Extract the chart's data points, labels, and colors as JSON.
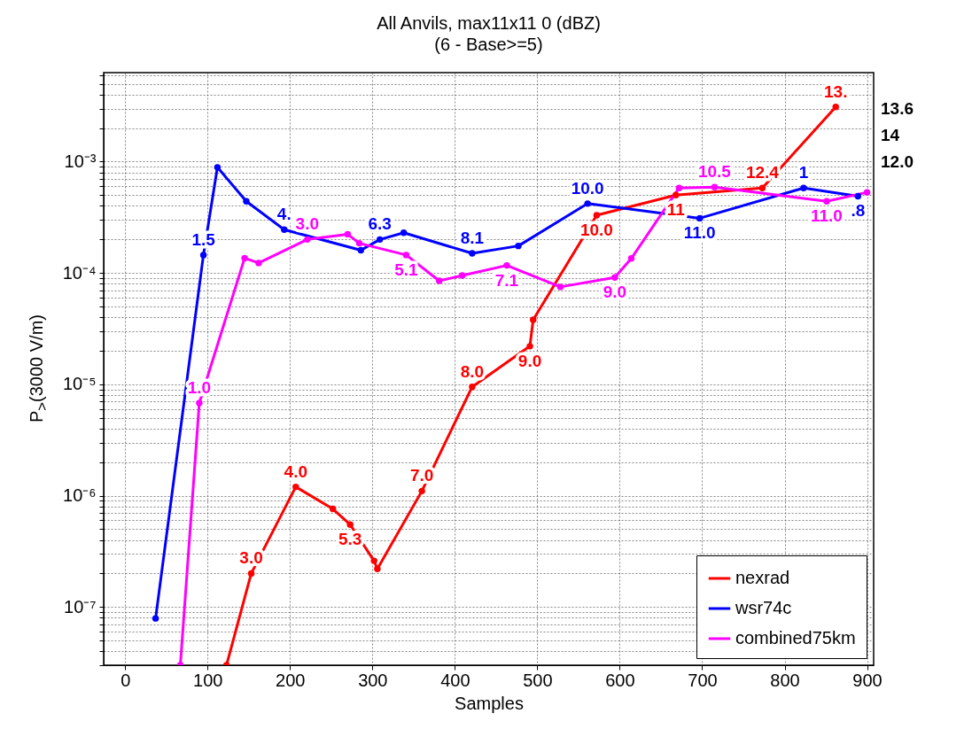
{
  "chart_data": {
    "type": "line",
    "title": "All Anvils, max11x11 0 (dBZ)",
    "subtitle": "(6 - Base>=5)",
    "xlabel": "Samples",
    "ylabel": "P$_{>}$(3000 V/m)",
    "log": true,
    "grid": true,
    "legend": "bottom right",
    "marker": "circle",
    "line_style": "solid",
    "xlim": [
      -26,
      908
    ],
    "xticks": [
      0,
      100,
      200,
      300,
      400,
      500,
      600,
      700,
      800,
      900
    ],
    "ylim": [
      3e-08,
      0.0063
    ],
    "yticks": [
      {
        "value": 3e-08,
        "label": null
      },
      {
        "value": 4e-08,
        "label": null
      },
      {
        "value": 5e-08,
        "label": null
      },
      {
        "value": 6e-08,
        "label": null
      },
      {
        "value": 7e-08,
        "label": null
      },
      {
        "value": 8e-08,
        "label": null
      },
      {
        "value": 9e-08,
        "label": null
      },
      {
        "value": 1e-07,
        "label": "10⁻⁷"
      },
      {
        "value": 2e-07,
        "label": null
      },
      {
        "value": 3e-07,
        "label": null
      },
      {
        "value": 4e-07,
        "label": null
      },
      {
        "value": 5e-07,
        "label": null
      },
      {
        "value": 6e-07,
        "label": null
      },
      {
        "value": 7e-07,
        "label": null
      },
      {
        "value": 8e-07,
        "label": null
      },
      {
        "value": 9e-07,
        "label": null
      },
      {
        "value": 1e-06,
        "label": "10⁻⁶"
      },
      {
        "value": 2e-06,
        "label": null
      },
      {
        "value": 3e-06,
        "label": null
      },
      {
        "value": 4e-06,
        "label": null
      },
      {
        "value": 5e-06,
        "label": null
      },
      {
        "value": 6e-06,
        "label": null
      },
      {
        "value": 7e-06,
        "label": null
      },
      {
        "value": 8e-06,
        "label": null
      },
      {
        "value": 9e-06,
        "label": null
      },
      {
        "value": 1e-05,
        "label": "10⁻⁵"
      },
      {
        "value": 2e-05,
        "label": null
      },
      {
        "value": 3e-05,
        "label": null
      },
      {
        "value": 4e-05,
        "label": null
      },
      {
        "value": 5e-05,
        "label": null
      },
      {
        "value": 6e-05,
        "label": null
      },
      {
        "value": 7e-05,
        "label": null
      },
      {
        "value": 8e-05,
        "label": null
      },
      {
        "value": 9e-05,
        "label": null
      },
      {
        "value": 0.0001,
        "label": "10⁻⁴"
      },
      {
        "value": 0.0002,
        "label": null
      },
      {
        "value": 0.0003,
        "label": null
      },
      {
        "value": 0.0004,
        "label": null
      },
      {
        "value": 0.0005,
        "label": null
      },
      {
        "value": 0.0006,
        "label": null
      },
      {
        "value": 0.0007,
        "label": null
      },
      {
        "value": 0.0008,
        "label": null
      },
      {
        "value": 0.0009,
        "label": null
      },
      {
        "value": 0.001,
        "label": "10⁻³"
      },
      {
        "value": 0.002,
        "label": null
      },
      {
        "value": 0.003,
        "label": null
      },
      {
        "value": 0.004,
        "label": null
      },
      {
        "value": 0.005,
        "label": null
      },
      {
        "value": 0.006,
        "label": null
      }
    ],
    "series": [
      {
        "name": "nexrad",
        "color": "#ff0000",
        "x": [
          123,
          153,
          207,
          252,
          273,
          302,
          306,
          360,
          421,
          491,
          495,
          572,
          668,
          773,
          862
        ],
        "values": [
          3e-08,
          2e-07,
          1.2e-06,
          7.6e-07,
          5.5e-07,
          2.6e-07,
          2.2e-07,
          1.1e-06,
          9.5e-06,
          2.2e-05,
          3.8e-05,
          0.00033,
          0.0005,
          0.00058,
          0.0031
        ]
      },
      {
        "name": "wsr74c",
        "color": "#0000ff",
        "x": [
          37,
          95,
          112,
          147,
          193,
          286,
          309,
          338,
          421,
          477,
          561,
          697,
          823,
          889
        ],
        "values": [
          7.9e-08,
          0.000145,
          0.00089,
          0.00044,
          0.000245,
          0.00016,
          0.0002,
          0.00023,
          0.00015,
          0.000175,
          0.00042,
          0.00031,
          0.00058,
          0.00049
        ]
      },
      {
        "name": "combined75km",
        "color": "#ff00ff",
        "x": [
          67,
          90,
          145,
          162,
          221,
          270,
          284,
          341,
          381,
          409,
          463,
          528,
          594,
          614,
          672,
          715,
          851,
          900
        ],
        "values": [
          3e-08,
          6.8e-06,
          0.000136,
          0.000123,
          0.0002,
          0.000223,
          0.000185,
          0.000145,
          8.5e-05,
          9.5e-05,
          0.000117,
          7.5e-05,
          9.1e-05,
          0.000135,
          0.00058,
          0.00059,
          0.00044,
          0.00053
        ]
      }
    ],
    "annotations": [
      {
        "text": "3.0",
        "x": 153,
        "y": 2e-07
      },
      {
        "text": "4.0",
        "x": 207,
        "y": 1.2e-06
      },
      {
        "text": "5.3",
        "x": 273,
        "y": 5.5e-07
      },
      {
        "text": "7.0",
        "x": 360,
        "y": 1.1e-06
      },
      {
        "text": "8.0",
        "x": 421,
        "y": 9.5e-06
      },
      {
        "text": "9.0",
        "x": 491,
        "y": 2.2e-05
      },
      {
        "text": "10.0",
        "x": 572,
        "y": 0.00033
      },
      {
        "text": "11",
        "x": 668,
        "y": 0.0005
      },
      {
        "text": "12.4",
        "x": 773,
        "y": 0.00058
      },
      {
        "text": "13.",
        "x": 862,
        "y": 0.0031
      },
      {
        "text": "1.5",
        "x": 95,
        "y": 0.000145
      },
      {
        "text": "4.",
        "x": 193,
        "y": 0.000245
      },
      {
        "text": "6.3",
        "x": 309,
        "y": 0.0002
      },
      {
        "text": "8.1",
        "x": 421,
        "y": 0.00015
      },
      {
        "text": "10.0",
        "x": 561,
        "y": 0.00042
      },
      {
        "text": "11.0",
        "x": 697,
        "y": 0.00031
      },
      {
        "text": "1",
        "x": 823,
        "y": 0.00058
      },
      {
        "text": ".8",
        "x": 889,
        "y": 0.00049
      },
      {
        "text": "1.0",
        "x": 90,
        "y": 6.8e-06
      },
      {
        "text": "3.0",
        "x": 221,
        "y": 0.0002
      },
      {
        "text": "5.1",
        "x": 341,
        "y": 0.000145
      },
      {
        "text": "7.1",
        "x": 463,
        "y": 0.000117
      },
      {
        "text": "9.0",
        "x": 594,
        "y": 9.1e-05
      },
      {
        "text": "10.5",
        "x": 715,
        "y": 0.00059
      },
      {
        "text": "11.0",
        "x": 851,
        "y": 0.00044
      },
      "13.6",
      "14",
      "12.0"
    ]
  }
}
